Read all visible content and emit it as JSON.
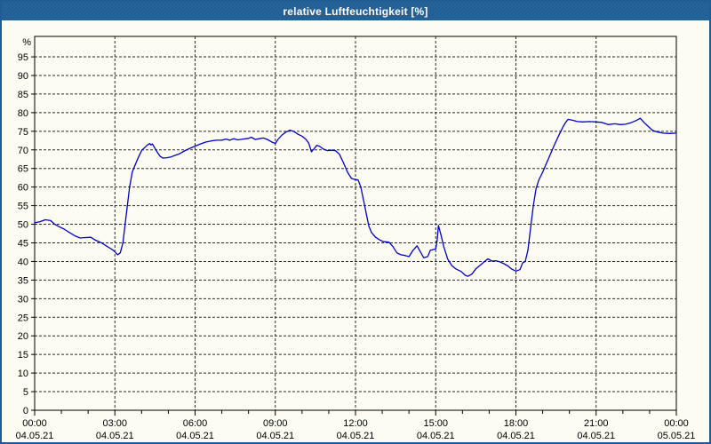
{
  "window": {
    "title": "relative Luftfeuchtigkeit [%]"
  },
  "colors": {
    "titlebar": "#1e5d93",
    "window_border": "#1e5d93",
    "content_background": "#fcfcf2",
    "axis": "#000000",
    "grid": "#2a2a2a",
    "tick_text": "#000000",
    "line": "#0000cc"
  },
  "chart_data": {
    "type": "line",
    "title": "relative Luftfeuchtigkeit [%]",
    "ylabel": "%",
    "xlabel": "",
    "ylim": [
      0,
      100.5
    ],
    "ytick_start": 0,
    "ytick_end": 95,
    "ytick_step": 5,
    "xlim_hours": [
      0,
      24
    ],
    "minor_xtick_hours": 1,
    "grid": true,
    "grid_style": "dashed",
    "legend": "none",
    "xticks": [
      {
        "hour": 0,
        "time": "00:00",
        "date": "04.05.21"
      },
      {
        "hour": 3,
        "time": "03:00",
        "date": "04.05.21"
      },
      {
        "hour": 6,
        "time": "06:00",
        "date": "04.05.21"
      },
      {
        "hour": 9,
        "time": "09:00",
        "date": "04.05.21"
      },
      {
        "hour": 12,
        "time": "12:00",
        "date": "04.05.21"
      },
      {
        "hour": 15,
        "time": "15:00",
        "date": "04.05.21"
      },
      {
        "hour": 18,
        "time": "18:00",
        "date": "04.05.21"
      },
      {
        "hour": 21,
        "time": "21:00",
        "date": "04.05.21"
      },
      {
        "hour": 24,
        "time": "00:00",
        "date": "05.05.21"
      }
    ],
    "series": [
      {
        "name": "relative Luftfeuchtigkeit",
        "unit": "%",
        "color": "#0000cc",
        "points": [
          [
            0.0,
            50.4
          ],
          [
            0.2,
            50.7
          ],
          [
            0.4,
            51.2
          ],
          [
            0.6,
            51.0
          ],
          [
            0.75,
            50.0
          ],
          [
            0.9,
            49.4
          ],
          [
            1.1,
            48.7
          ],
          [
            1.3,
            47.8
          ],
          [
            1.5,
            46.9
          ],
          [
            1.7,
            46.3
          ],
          [
            1.85,
            46.4
          ],
          [
            2.1,
            46.5
          ],
          [
            2.25,
            45.8
          ],
          [
            2.5,
            45.0
          ],
          [
            2.7,
            44.1
          ],
          [
            2.9,
            43.2
          ],
          [
            3.0,
            42.6
          ],
          [
            3.1,
            41.8
          ],
          [
            3.2,
            42.3
          ],
          [
            3.3,
            45.0
          ],
          [
            3.35,
            48.0
          ],
          [
            3.45,
            54.0
          ],
          [
            3.55,
            60.0
          ],
          [
            3.65,
            64.0
          ],
          [
            3.75,
            65.8
          ],
          [
            3.85,
            67.5
          ],
          [
            4.0,
            69.8
          ],
          [
            4.1,
            70.5
          ],
          [
            4.2,
            71.2
          ],
          [
            4.3,
            71.7
          ],
          [
            4.35,
            71.3
          ],
          [
            4.4,
            71.6
          ],
          [
            4.5,
            70.4
          ],
          [
            4.6,
            69.2
          ],
          [
            4.7,
            68.2
          ],
          [
            4.8,
            67.8
          ],
          [
            4.95,
            67.9
          ],
          [
            5.1,
            68.1
          ],
          [
            5.25,
            68.5
          ],
          [
            5.4,
            68.9
          ],
          [
            5.6,
            69.7
          ],
          [
            5.8,
            70.4
          ],
          [
            6.0,
            71.0
          ],
          [
            6.2,
            71.6
          ],
          [
            6.4,
            72.1
          ],
          [
            6.6,
            72.4
          ],
          [
            6.8,
            72.6
          ],
          [
            7.0,
            72.6
          ],
          [
            7.15,
            72.9
          ],
          [
            7.3,
            72.6
          ],
          [
            7.45,
            73.0
          ],
          [
            7.6,
            72.7
          ],
          [
            7.8,
            72.9
          ],
          [
            8.0,
            73.1
          ],
          [
            8.1,
            73.4
          ],
          [
            8.25,
            72.8
          ],
          [
            8.4,
            73.0
          ],
          [
            8.55,
            73.2
          ],
          [
            8.7,
            72.8
          ],
          [
            8.85,
            72.2
          ],
          [
            9.0,
            71.7
          ],
          [
            9.1,
            72.8
          ],
          [
            9.25,
            74.0
          ],
          [
            9.4,
            74.8
          ],
          [
            9.55,
            75.3
          ],
          [
            9.7,
            74.9
          ],
          [
            9.85,
            74.2
          ],
          [
            10.0,
            73.7
          ],
          [
            10.15,
            72.8
          ],
          [
            10.25,
            71.8
          ],
          [
            10.35,
            69.5
          ],
          [
            10.45,
            70.3
          ],
          [
            10.55,
            71.2
          ],
          [
            10.65,
            71.0
          ],
          [
            10.8,
            70.2
          ],
          [
            10.95,
            69.8
          ],
          [
            11.1,
            69.9
          ],
          [
            11.25,
            69.8
          ],
          [
            11.4,
            68.8
          ],
          [
            11.55,
            66.5
          ],
          [
            11.7,
            64.0
          ],
          [
            11.85,
            62.3
          ],
          [
            12.0,
            62.0
          ],
          [
            12.1,
            61.9
          ],
          [
            12.2,
            60.0
          ],
          [
            12.3,
            56.5
          ],
          [
            12.4,
            53.0
          ],
          [
            12.5,
            49.5
          ],
          [
            12.6,
            47.8
          ],
          [
            12.75,
            46.5
          ],
          [
            12.9,
            45.8
          ],
          [
            13.05,
            45.3
          ],
          [
            13.25,
            45.2
          ],
          [
            13.4,
            44.0
          ],
          [
            13.55,
            42.3
          ],
          [
            13.7,
            41.8
          ],
          [
            13.85,
            41.6
          ],
          [
            14.0,
            41.3
          ],
          [
            14.15,
            43.0
          ],
          [
            14.3,
            44.2
          ],
          [
            14.45,
            42.3
          ],
          [
            14.55,
            41.0
          ],
          [
            14.7,
            41.3
          ],
          [
            14.8,
            43.0
          ],
          [
            15.0,
            43.4
          ],
          [
            15.05,
            45.5
          ],
          [
            15.1,
            49.7
          ],
          [
            15.2,
            47.0
          ],
          [
            15.3,
            44.0
          ],
          [
            15.45,
            40.6
          ],
          [
            15.6,
            38.9
          ],
          [
            15.75,
            38.0
          ],
          [
            15.95,
            37.3
          ],
          [
            16.1,
            36.3
          ],
          [
            16.2,
            36.0
          ],
          [
            16.35,
            36.6
          ],
          [
            16.5,
            38.0
          ],
          [
            16.65,
            38.9
          ],
          [
            16.8,
            39.8
          ],
          [
            16.95,
            40.7
          ],
          [
            17.1,
            40.1
          ],
          [
            17.25,
            40.2
          ],
          [
            17.4,
            39.9
          ],
          [
            17.55,
            39.4
          ],
          [
            17.7,
            38.8
          ],
          [
            17.85,
            37.9
          ],
          [
            18.0,
            37.4
          ],
          [
            18.15,
            37.8
          ],
          [
            18.25,
            39.6
          ],
          [
            18.35,
            40.0
          ],
          [
            18.45,
            43.0
          ],
          [
            18.55,
            49.0
          ],
          [
            18.65,
            55.0
          ],
          [
            18.75,
            59.5
          ],
          [
            18.85,
            61.8
          ],
          [
            19.0,
            64.0
          ],
          [
            19.15,
            66.5
          ],
          [
            19.3,
            69.0
          ],
          [
            19.45,
            71.5
          ],
          [
            19.6,
            73.8
          ],
          [
            19.75,
            76.0
          ],
          [
            19.85,
            77.3
          ],
          [
            19.95,
            78.2
          ],
          [
            20.1,
            78.0
          ],
          [
            20.3,
            77.6
          ],
          [
            20.5,
            77.5
          ],
          [
            20.75,
            77.6
          ],
          [
            21.0,
            77.5
          ],
          [
            21.2,
            77.4
          ],
          [
            21.45,
            76.8
          ],
          [
            21.7,
            77.0
          ],
          [
            21.9,
            76.8
          ],
          [
            22.1,
            76.9
          ],
          [
            22.3,
            77.3
          ],
          [
            22.5,
            77.9
          ],
          [
            22.65,
            78.5
          ],
          [
            22.8,
            77.3
          ],
          [
            22.95,
            76.3
          ],
          [
            23.1,
            75.3
          ],
          [
            23.3,
            74.8
          ],
          [
            23.5,
            74.5
          ],
          [
            23.75,
            74.4
          ],
          [
            24.0,
            74.5
          ]
        ]
      }
    ]
  }
}
